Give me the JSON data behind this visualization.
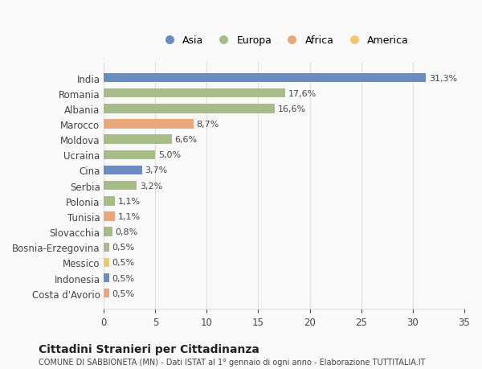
{
  "categories": [
    "India",
    "Romania",
    "Albania",
    "Marocco",
    "Moldova",
    "Ucraina",
    "Cina",
    "Serbia",
    "Polonia",
    "Tunisia",
    "Slovacchia",
    "Bosnia-Erzegovina",
    "Messico",
    "Indonesia",
    "Costa d'Avorio"
  ],
  "values": [
    31.3,
    17.6,
    16.6,
    8.7,
    6.6,
    5.0,
    3.7,
    3.2,
    1.1,
    1.1,
    0.8,
    0.5,
    0.5,
    0.5,
    0.5
  ],
  "labels": [
    "31,3%",
    "17,6%",
    "16,6%",
    "8,7%",
    "6,6%",
    "5,0%",
    "3,7%",
    "3,2%",
    "1,1%",
    "1,1%",
    "0,8%",
    "0,5%",
    "0,5%",
    "0,5%",
    "0,5%"
  ],
  "colors": [
    "#6b8cbf",
    "#a8bc8a",
    "#a8bc8a",
    "#e8a87c",
    "#a8bc8a",
    "#a8bc8a",
    "#6b8cbf",
    "#a8bc8a",
    "#a8bc8a",
    "#e8a87c",
    "#a8bc8a",
    "#a8bc8a",
    "#f0c96e",
    "#6b8cbf",
    "#e8a87c"
  ],
  "legend": [
    {
      "label": "Asia",
      "color": "#6b8cbf"
    },
    {
      "label": "Europa",
      "color": "#a8bc8a"
    },
    {
      "label": "Africa",
      "color": "#e8a87c"
    },
    {
      "label": "America",
      "color": "#f0c96e"
    }
  ],
  "title": "Cittadini Stranieri per Cittadinanza",
  "subtitle": "COMUNE DI SABBIONETA (MN) - Dati ISTAT al 1° gennaio di ogni anno - Elaborazione TUTTITALIA.IT",
  "xlim": [
    0,
    35
  ],
  "xticks": [
    0,
    5,
    10,
    15,
    20,
    25,
    30,
    35
  ],
  "background_color": "#f9f9f9",
  "grid_color": "#dddddd"
}
